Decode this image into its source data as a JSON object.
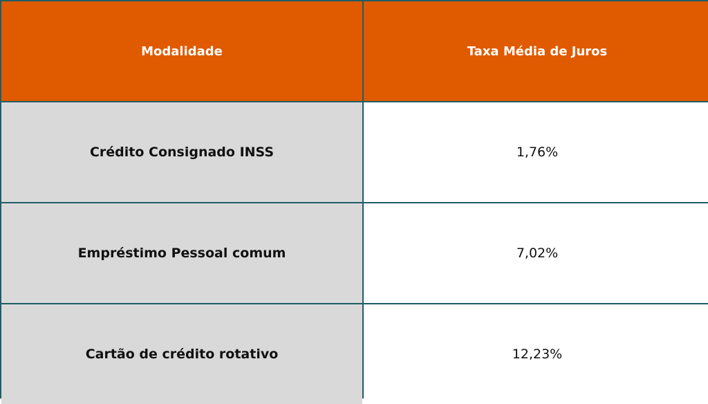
{
  "table": {
    "headers": [
      "Modalidade",
      "Taxa Média de Juros"
    ],
    "rows": [
      [
        "Crédito Consignado INSS",
        "1,76%"
      ],
      [
        "Empréstimo Pessoal comum",
        "7,02%"
      ],
      [
        "Cartão de crédito rotativo",
        "12,23%"
      ]
    ],
    "colors": {
      "header_bg": "#e05a00",
      "header_text": "#ffffff",
      "label_bg": "#d9d9d9",
      "value_bg": "#ffffff",
      "border": "#1f5d66"
    }
  }
}
